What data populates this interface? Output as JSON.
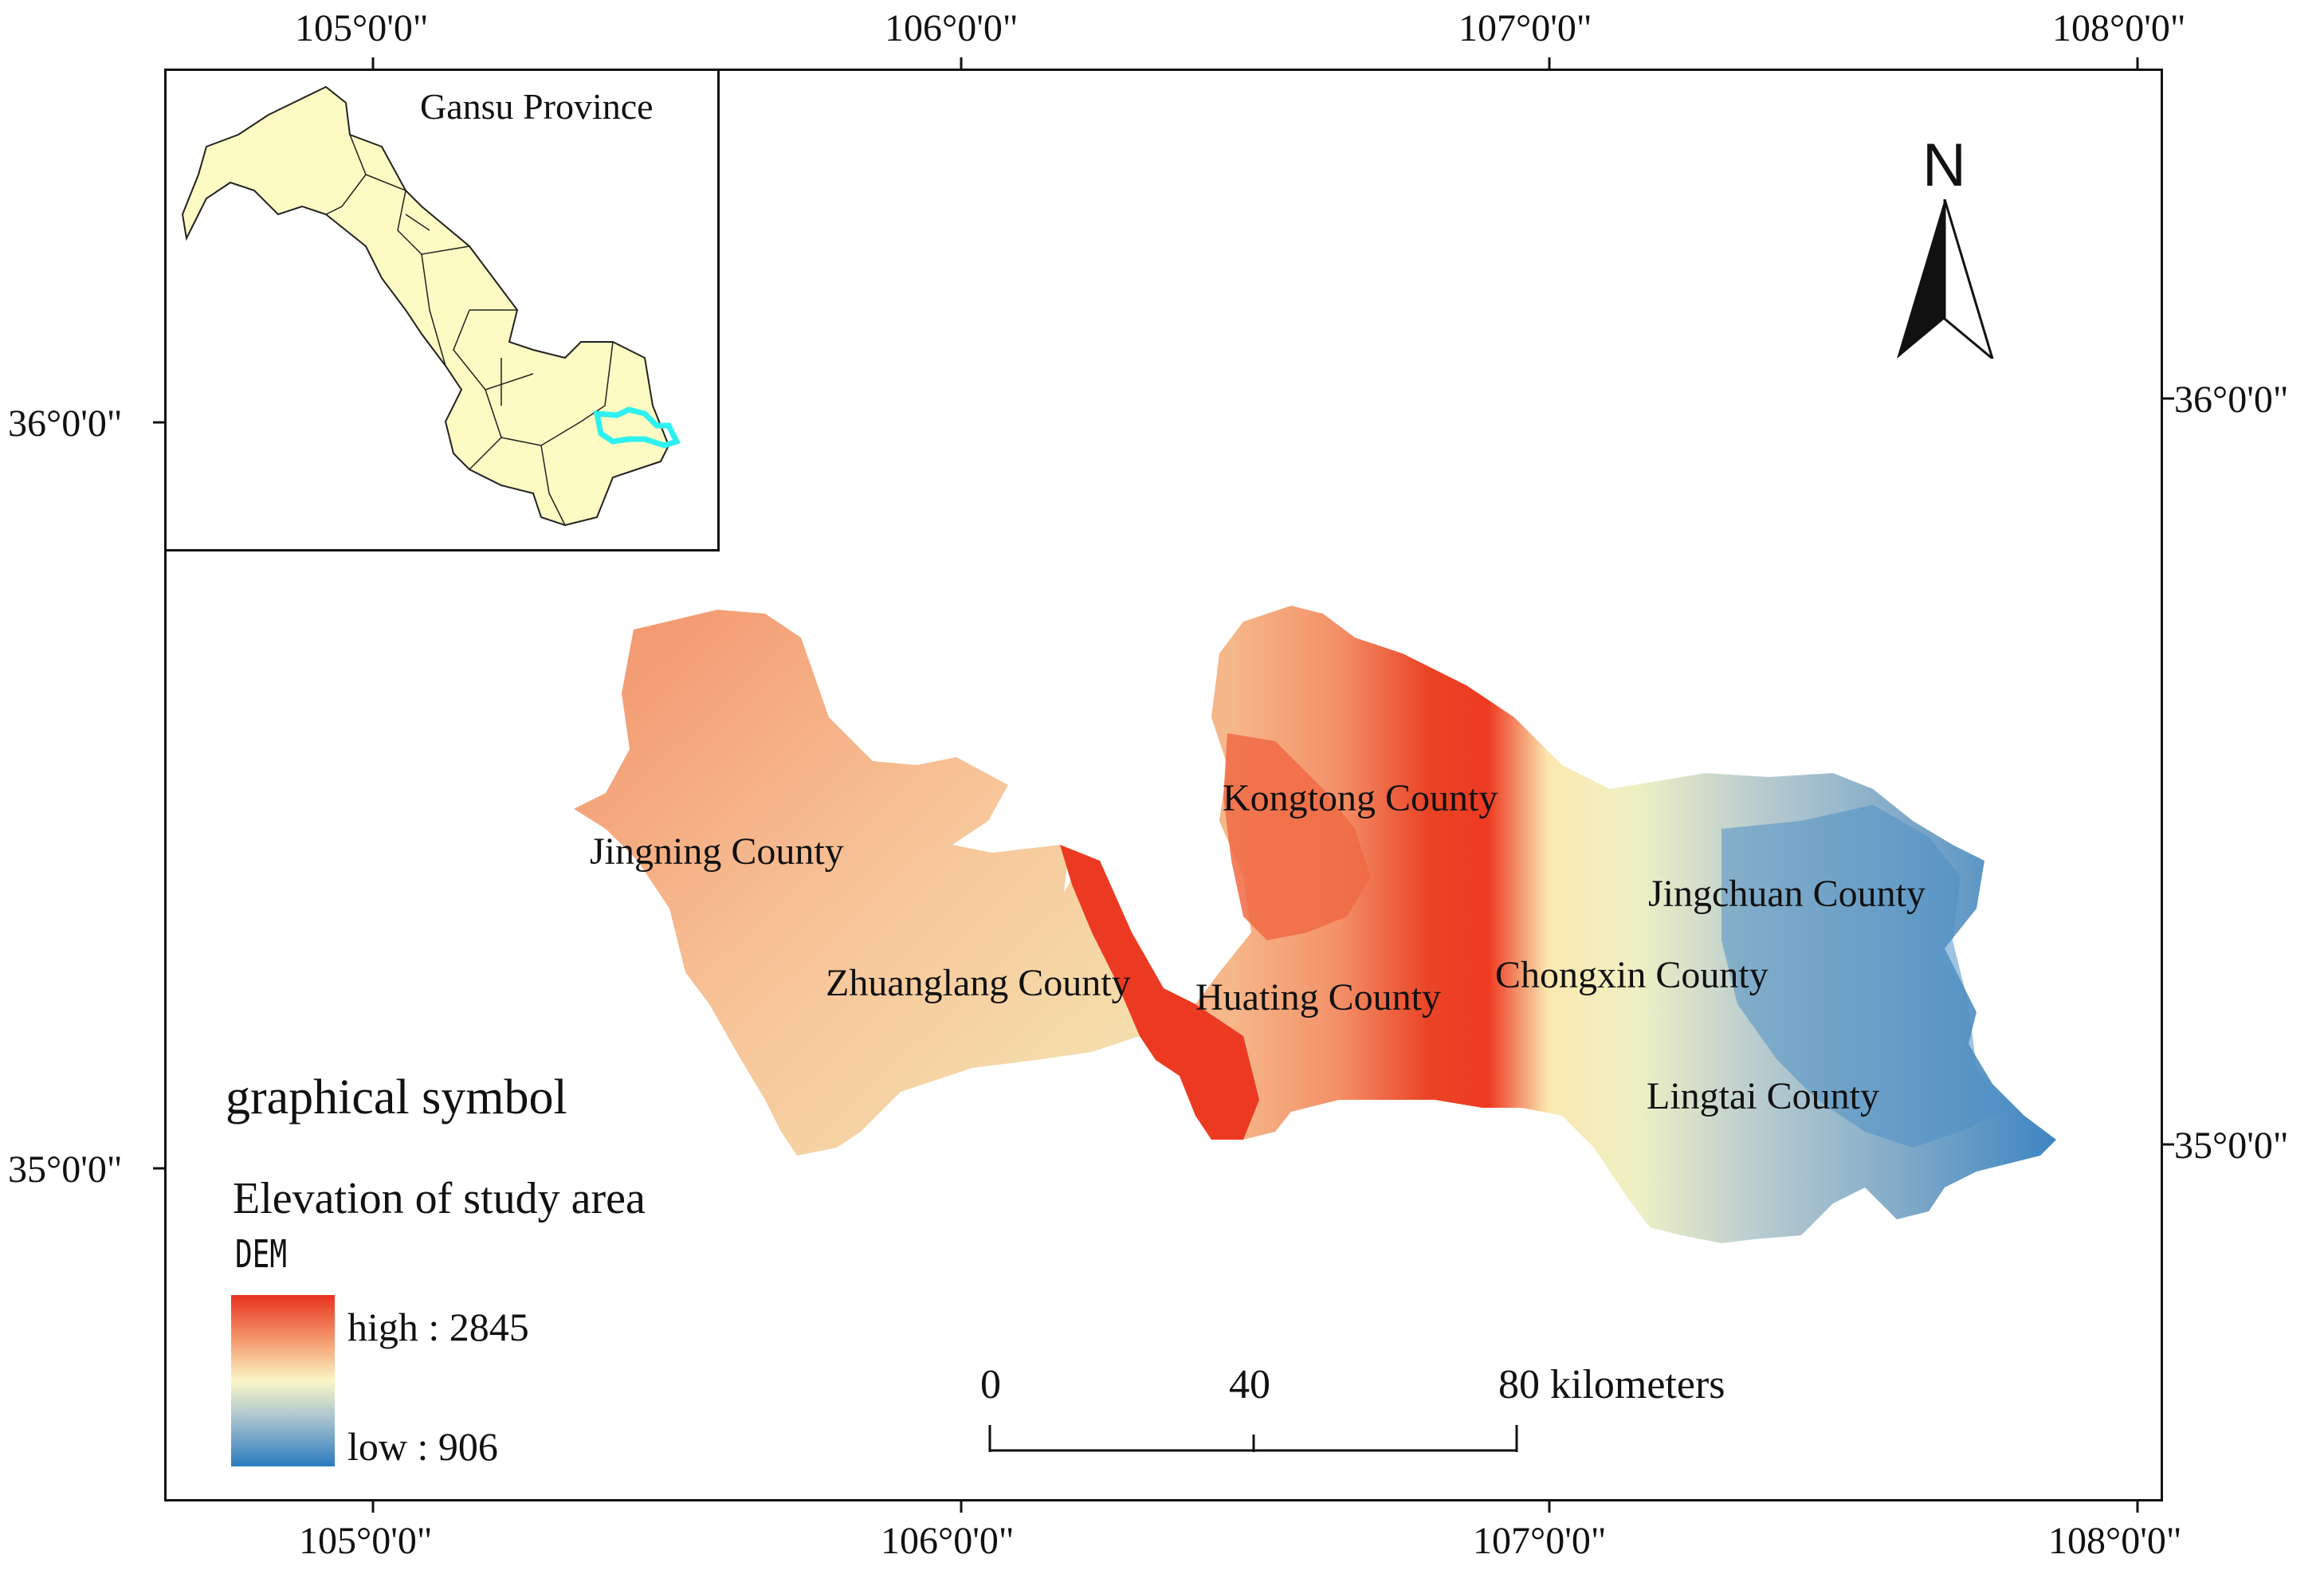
{
  "graticule": {
    "top_lon": [
      "105°0'0\"",
      "106°0'0\"",
      "107°0'0\"",
      "108°0'0\""
    ],
    "bottom_lon": [
      "105°0'0\"",
      "106°0'0\"",
      "107°0'0\"",
      "108°0'0\""
    ],
    "left_lat": [
      "36°0'0\"",
      "35°0'0\""
    ],
    "right_lat": [
      "36°0'0\"",
      "35°0'0\""
    ]
  },
  "inset": {
    "title": "Gansu Province",
    "highlight_color": "#2ff0f0",
    "fill_color": "#fdfac3"
  },
  "counties": [
    {
      "name": "Kongtong County"
    },
    {
      "name": "Jingning County"
    },
    {
      "name": "Jingchuan County"
    },
    {
      "name": "Zhuanglang County"
    },
    {
      "name": "Huating County"
    },
    {
      "name": "Chongxin County"
    },
    {
      "name": "Lingtai County"
    }
  ],
  "north_arrow": {
    "label": "N",
    "icon": "north-arrow-icon"
  },
  "legend": {
    "heading": "graphical symbol",
    "title": "Elevation of study area",
    "layer": "DEM",
    "high_label": "high : 2845",
    "low_label": "low : 906",
    "high_value": 2845,
    "low_value": 906,
    "colors": [
      "#e8321e",
      "#f6a87a",
      "#fbf6c6",
      "#a8c3cf",
      "#2a7bbf"
    ]
  },
  "scale_bar": {
    "ticks": [
      "0",
      "40",
      "80 kilometers"
    ]
  }
}
